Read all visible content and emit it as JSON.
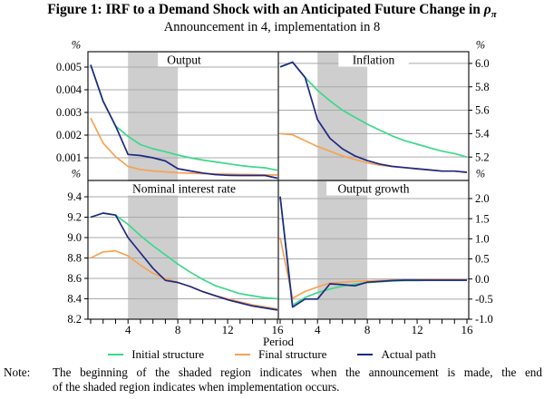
{
  "figure": {
    "title_prefix": "Figure 1: IRF to a Demand Shock with an Anticipated Future Change in ",
    "title_symbol": "ρ",
    "title_symbol_sub": "π",
    "subtitle": "Announcement in 4, implementation in 8"
  },
  "legend": {
    "items": [
      {
        "name": "initial",
        "label": "Initial structure",
        "color": "#3bd98a"
      },
      {
        "name": "final",
        "label": "Final structure",
        "color": "#f7a254"
      },
      {
        "name": "actual",
        "label": "Actual path",
        "color": "#1e2882"
      }
    ]
  },
  "note": {
    "label": "Note:",
    "line1": "The beginning of the shaded region indicates when the announcement is made, the end",
    "line2": "of the shaded region indicates when implementation occurs."
  },
  "chart_data": {
    "type": "line",
    "x": [
      1,
      2,
      3,
      4,
      5,
      6,
      7,
      8,
      9,
      10,
      11,
      12,
      13,
      14,
      15,
      16
    ],
    "xlabel": "Period",
    "xtick_labels": [
      "4",
      "8",
      "12",
      "16"
    ],
    "xtick_values": [
      4,
      8,
      12,
      16
    ],
    "shaded_region": {
      "start": 4,
      "end": 8
    },
    "grid": true,
    "legend_position": "bottom",
    "band_color": "#cecece",
    "grid_color": "#a9a9a9",
    "border_color": "#1a1a1a",
    "series_order": [
      "initial",
      "final",
      "actual"
    ],
    "panels": [
      {
        "id": "output",
        "title": "Output",
        "position": "top-left",
        "axis_side": "left",
        "unit": "%",
        "ylim": [
          0,
          0.00568
        ],
        "ytick_values": [
          0.001,
          0.002,
          0.003,
          0.004,
          0.005
        ],
        "ytick_labels": [
          "0.001",
          "0.002",
          "0.003",
          "0.004",
          "0.005"
        ],
        "series": {
          "initial": [
            0.0051,
            0.0035,
            0.0024,
            0.00195,
            0.00158,
            0.0014,
            0.00127,
            0.00112,
            0.001,
            0.0009,
            0.00082,
            0.00074,
            0.00066,
            0.0006,
            0.00056,
            0.00045
          ],
          "final": [
            0.00275,
            0.00165,
            0.00105,
            0.00062,
            0.00048,
            0.00042,
            0.00038,
            0.00034,
            0.00032,
            0.0003,
            0.00029,
            0.00028,
            0.00027,
            0.00026,
            0.00025,
            0.00024
          ],
          "actual": [
            0.0051,
            0.0035,
            0.0024,
            0.00115,
            0.0011,
            0.001,
            0.00086,
            0.00052,
            0.00042,
            0.00033,
            0.00026,
            0.00023,
            0.00022,
            0.00022,
            0.00022,
            0.0001
          ]
        }
      },
      {
        "id": "inflation",
        "title": "Inflation",
        "position": "top-right",
        "axis_side": "right",
        "unit": "%",
        "ylim": [
          5.0,
          6.1
        ],
        "ytick_values": [
          5.2,
          5.4,
          5.6,
          5.8,
          6.0
        ],
        "ytick_labels": [
          "5.2",
          "5.4",
          "5.6",
          "5.8",
          "6.0"
        ],
        "series": {
          "initial": [
            5.97,
            6.01,
            5.88,
            5.77,
            5.68,
            5.6,
            5.54,
            5.48,
            5.43,
            5.38,
            5.34,
            5.31,
            5.28,
            5.25,
            5.23,
            5.2
          ],
          "final": [
            5.4,
            5.39,
            5.34,
            5.29,
            5.25,
            5.21,
            5.18,
            5.15,
            5.13,
            5.12,
            5.11,
            5.1,
            5.09,
            5.08,
            5.08,
            5.07
          ],
          "actual": [
            5.97,
            6.01,
            5.88,
            5.52,
            5.36,
            5.27,
            5.21,
            5.17,
            5.14,
            5.12,
            5.11,
            5.1,
            5.09,
            5.08,
            5.08,
            5.07
          ]
        }
      },
      {
        "id": "nominal-interest-rate",
        "title": "Nominal interest rate",
        "position": "bottom-left",
        "axis_side": "left",
        "unit": "%",
        "ylim": [
          8.2,
          9.56
        ],
        "ytick_values": [
          8.2,
          8.4,
          8.6,
          8.8,
          9.0,
          9.2,
          9.4
        ],
        "ytick_labels": [
          "8.2",
          "8.4",
          "8.6",
          "8.8",
          "9.0",
          "9.2",
          "9.4"
        ],
        "series": {
          "initial": [
            9.2,
            9.24,
            9.22,
            9.13,
            9.02,
            8.92,
            8.83,
            8.74,
            8.66,
            8.59,
            8.53,
            8.49,
            8.45,
            8.43,
            8.41,
            8.4
          ],
          "final": [
            8.8,
            8.86,
            8.87,
            8.82,
            8.73,
            8.65,
            8.6,
            8.56,
            8.52,
            8.47,
            8.43,
            8.4,
            8.37,
            8.34,
            8.32,
            8.3
          ],
          "actual": [
            9.2,
            9.24,
            9.22,
            9.0,
            8.85,
            8.7,
            8.58,
            8.56,
            8.52,
            8.47,
            8.43,
            8.39,
            8.36,
            8.33,
            8.31,
            8.29
          ]
        }
      },
      {
        "id": "output-growth",
        "title": "Output growth",
        "position": "bottom-right",
        "axis_side": "right",
        "unit": "%",
        "ylim": [
          -1.0,
          2.45
        ],
        "ytick_values": [
          -1.0,
          -0.5,
          0.0,
          0.5,
          1.0,
          1.5,
          2.0
        ],
        "ytick_labels": [
          "-1.0",
          "-0.5",
          "0.0",
          "0.5",
          "1.0",
          "1.5",
          "2.0"
        ],
        "series": {
          "initial": [
            2.05,
            -0.65,
            -0.46,
            -0.34,
            -0.25,
            -0.18,
            -0.13,
            -0.09,
            -0.07,
            -0.05,
            -0.04,
            -0.04,
            -0.03,
            -0.03,
            -0.03,
            -0.03
          ],
          "final": [
            1.03,
            -0.48,
            -0.31,
            -0.2,
            -0.1,
            -0.08,
            -0.06,
            -0.05,
            -0.04,
            -0.03,
            -0.03,
            -0.03,
            -0.02,
            -0.02,
            -0.02,
            -0.02
          ],
          "actual": [
            2.05,
            -0.7,
            -0.5,
            -0.5,
            -0.12,
            -0.14,
            -0.17,
            -0.08,
            -0.06,
            -0.04,
            -0.03,
            -0.03,
            -0.03,
            -0.03,
            -0.03,
            -0.03
          ]
        }
      }
    ]
  }
}
